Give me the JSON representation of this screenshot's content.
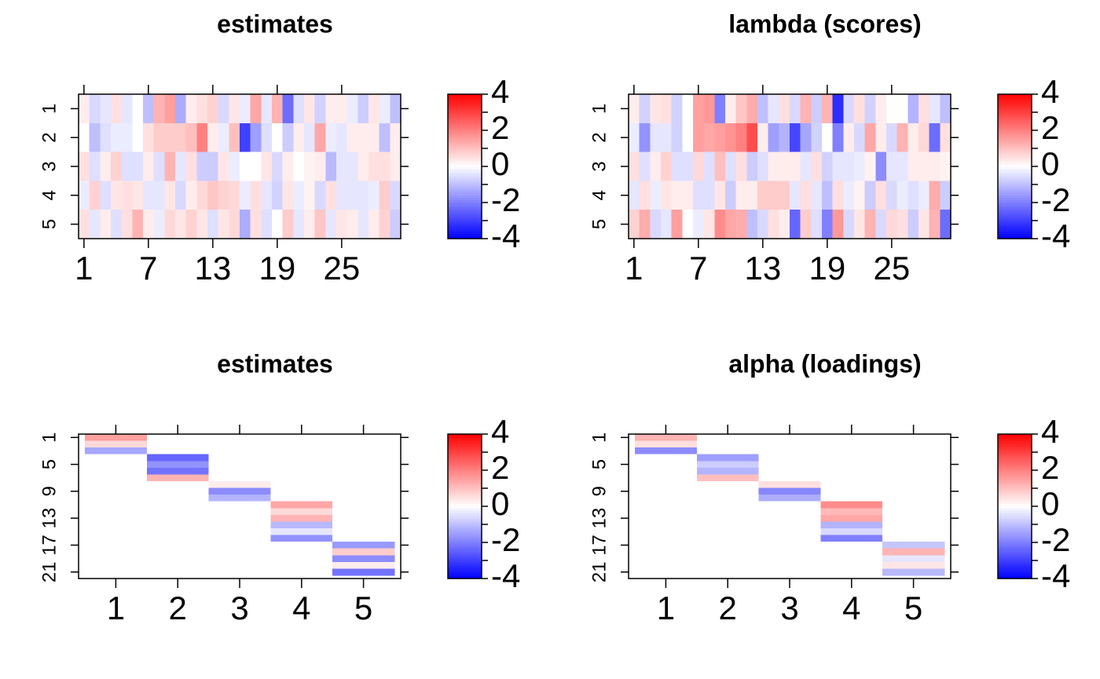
{
  "colors": {
    "negative": "#0000ff",
    "zero": "#ffffff",
    "positive": "#ff0000"
  },
  "chart_data": [
    {
      "type": "heatmap",
      "title": "estimates",
      "x_ticks": [
        "1",
        "7",
        "13",
        "19",
        "25"
      ],
      "y_ticks": [
        "1",
        "2",
        "3",
        "4",
        "5"
      ],
      "zlim": [
        -4,
        4
      ],
      "key_ticks": [
        "4",
        "2",
        "0",
        "-2",
        "-4"
      ],
      "rows": [
        [
          0.3,
          -0.6,
          -0.4,
          0.5,
          -0.4,
          0.0,
          -1.0,
          1.2,
          1.5,
          -1.3,
          0.3,
          0.5,
          0.7,
          -0.6,
          0.4,
          -0.3,
          1.4,
          -0.4,
          1.2,
          -2.3,
          -0.5,
          0.4,
          -0.7,
          0.3,
          0.3,
          -0.3,
          -0.8,
          0.4,
          -0.3,
          -1.0
        ],
        [
          0.0,
          -1.0,
          -0.5,
          -0.3,
          -0.3,
          0.0,
          0.5,
          0.8,
          0.8,
          0.8,
          1.0,
          2.0,
          0.3,
          -0.3,
          1.0,
          -3.0,
          -1.5,
          -0.5,
          0.0,
          -0.8,
          0.3,
          -0.4,
          1.4,
          -0.3,
          -0.4,
          0.3,
          0.3,
          0.3,
          -1.0,
          0.3
        ],
        [
          0.5,
          -0.5,
          0.3,
          0.7,
          -0.5,
          -0.5,
          0.3,
          -0.5,
          1.2,
          -0.4,
          0.5,
          -0.8,
          -0.8,
          0.4,
          -0.3,
          0.0,
          0.0,
          0.4,
          -0.6,
          0.3,
          0.0,
          0.2,
          0.3,
          -1.1,
          -0.4,
          -0.4,
          0.3,
          0.5,
          0.5,
          0.3
        ],
        [
          -0.3,
          0.7,
          -0.5,
          0.4,
          0.5,
          0.4,
          -0.4,
          -0.4,
          0.4,
          -0.6,
          0.3,
          0.6,
          0.9,
          0.7,
          0.6,
          -0.3,
          0.5,
          -0.4,
          -0.7,
          0.4,
          -0.3,
          0.2,
          -0.6,
          0.5,
          -0.4,
          -0.4,
          -0.4,
          -0.3,
          0.8,
          -0.6
        ],
        [
          0.5,
          -0.4,
          0.3,
          -0.5,
          0.5,
          1.2,
          0.3,
          -0.3,
          0.6,
          0.4,
          0.7,
          0.4,
          -0.5,
          0.4,
          0.6,
          -1.3,
          0.5,
          -0.5,
          0.0,
          0.8,
          -0.4,
          0.3,
          0.9,
          -0.4,
          0.4,
          0.3,
          -0.4,
          0.3,
          0.7,
          -0.8
        ]
      ]
    },
    {
      "type": "heatmap",
      "title": "lambda (scores)",
      "x_ticks": [
        "1",
        "7",
        "13",
        "19",
        "25"
      ],
      "y_ticks": [
        "1",
        "2",
        "3",
        "4",
        "5"
      ],
      "zlim": [
        -4,
        4
      ],
      "key_ticks": [
        "4",
        "2",
        "0",
        "-2",
        "-4"
      ],
      "rows": [
        [
          0.3,
          -0.7,
          0.4,
          0.5,
          -0.7,
          0.0,
          1.5,
          1.6,
          -2.0,
          0.3,
          0.9,
          1.3,
          -1.0,
          -0.4,
          0.5,
          -0.6,
          1.2,
          -0.8,
          1.2,
          -3.3,
          -0.6,
          0.5,
          -0.7,
          0.3,
          0.0,
          0.0,
          -1.2,
          0.5,
          -0.4,
          -1.0
        ],
        [
          -0.3,
          -1.7,
          -0.4,
          -0.4,
          -0.7,
          0.0,
          1.5,
          1.4,
          1.5,
          1.7,
          2.0,
          2.8,
          0.3,
          -1.5,
          -1.2,
          -2.9,
          -1.4,
          -0.7,
          0.0,
          -2.0,
          0.3,
          -0.6,
          1.4,
          0.3,
          -0.6,
          1.2,
          0.3,
          0.6,
          -2.3,
          0.5
        ],
        [
          0.5,
          -0.5,
          0.3,
          0.7,
          -0.5,
          -0.5,
          0.6,
          -0.5,
          1.0,
          -0.5,
          0.5,
          -0.8,
          -0.5,
          0.3,
          0.3,
          0.3,
          -0.4,
          0.5,
          -0.7,
          -0.4,
          -0.4,
          -0.3,
          0.2,
          -1.8,
          -0.4,
          -0.4,
          0.3,
          0.3,
          0.3,
          0.2
        ],
        [
          -0.4,
          0.5,
          -0.3,
          0.4,
          0.3,
          0.3,
          -0.5,
          -0.5,
          0.4,
          -0.8,
          0.3,
          0.3,
          0.8,
          0.8,
          0.8,
          -0.4,
          0.5,
          -0.4,
          -1.0,
          0.5,
          -0.3,
          0.2,
          -0.8,
          0.5,
          -0.6,
          -0.3,
          -0.5,
          -0.3,
          1.3,
          -0.8
        ],
        [
          0.7,
          1.3,
          -0.6,
          -0.4,
          1.5,
          0.0,
          -0.3,
          0.4,
          1.8,
          1.4,
          1.3,
          -1.0,
          -0.6,
          0.5,
          0.3,
          -2.4,
          0.8,
          -0.5,
          -2.0,
          1.6,
          -0.6,
          0.4,
          1.2,
          -0.6,
          0.6,
          0.5,
          -0.8,
          0.4,
          1.2,
          -2.3
        ]
      ]
    },
    {
      "type": "heatmap",
      "title": "estimates",
      "x_ticks": [
        "1",
        "2",
        "3",
        "4",
        "5"
      ],
      "y_ticks": [
        "1",
        "5",
        "9",
        "13",
        "17",
        "21"
      ],
      "zlim": [
        -4,
        4
      ],
      "key_ticks": [
        "4",
        "2",
        "0",
        "-2",
        "-4"
      ],
      "rows": [
        [
          1.5,
          0,
          0,
          0,
          0
        ],
        [
          0.6,
          0,
          0,
          0,
          0
        ],
        [
          -1.4,
          0,
          0,
          0,
          0
        ],
        [
          0,
          -2.4,
          0,
          0,
          0
        ],
        [
          0,
          -1.7,
          0,
          0,
          0
        ],
        [
          0,
          -2.2,
          0,
          0,
          0
        ],
        [
          0,
          1.2,
          0,
          0,
          0
        ],
        [
          0,
          0,
          0.3,
          0,
          0
        ],
        [
          0,
          0,
          -1.8,
          0,
          0
        ],
        [
          0,
          0,
          -1.2,
          0,
          0
        ],
        [
          0,
          0,
          0,
          1.4,
          0
        ],
        [
          0,
          0,
          0,
          0.6,
          0
        ],
        [
          0,
          0,
          0,
          1.2,
          0
        ],
        [
          0,
          0,
          0,
          -1.1,
          0
        ],
        [
          0,
          0,
          0,
          -0.4,
          0
        ],
        [
          0,
          0,
          0,
          -1.7,
          0
        ],
        [
          0,
          0,
          0,
          0,
          -1.6
        ],
        [
          0,
          0,
          0,
          0,
          0.8
        ],
        [
          0,
          0,
          0,
          0,
          -1.8
        ],
        [
          0,
          0,
          0,
          0,
          0.3
        ],
        [
          0,
          0,
          0,
          0,
          -2.2
        ]
      ]
    },
    {
      "type": "heatmap",
      "title": "alpha (loadings)",
      "x_ticks": [
        "1",
        "2",
        "3",
        "4",
        "5"
      ],
      "y_ticks": [
        "1",
        "5",
        "9",
        "13",
        "17",
        "21"
      ],
      "zlim": [
        -4,
        4
      ],
      "key_ticks": [
        "4",
        "2",
        "0",
        "-2",
        "-4"
      ],
      "rows": [
        [
          1.2,
          0,
          0,
          0,
          0
        ],
        [
          0.5,
          0,
          0,
          0,
          0
        ],
        [
          -1.8,
          0,
          0,
          0,
          0
        ],
        [
          0,
          -1.5,
          0,
          0,
          0
        ],
        [
          0,
          -0.8,
          0,
          0,
          0
        ],
        [
          0,
          -1.2,
          0,
          0,
          0
        ],
        [
          0,
          1.0,
          0,
          0,
          0
        ],
        [
          0,
          0,
          0.5,
          0,
          0
        ],
        [
          0,
          0,
          -1.9,
          0,
          0
        ],
        [
          0,
          0,
          -1.3,
          0,
          0
        ],
        [
          0,
          0,
          0,
          1.8,
          0
        ],
        [
          0,
          0,
          0,
          1.1,
          0
        ],
        [
          0,
          0,
          0,
          1.4,
          0
        ],
        [
          0,
          0,
          0,
          -1.2,
          0
        ],
        [
          0,
          0,
          0,
          -0.6,
          0
        ],
        [
          0,
          0,
          0,
          -2.0,
          0
        ],
        [
          0,
          0,
          0,
          0,
          -0.9
        ],
        [
          0,
          0,
          0,
          0,
          1.2
        ],
        [
          0,
          0,
          0,
          0,
          -0.4
        ],
        [
          0,
          0,
          0,
          0,
          0.4
        ],
        [
          0,
          0,
          0,
          0,
          -1.1
        ]
      ]
    }
  ]
}
